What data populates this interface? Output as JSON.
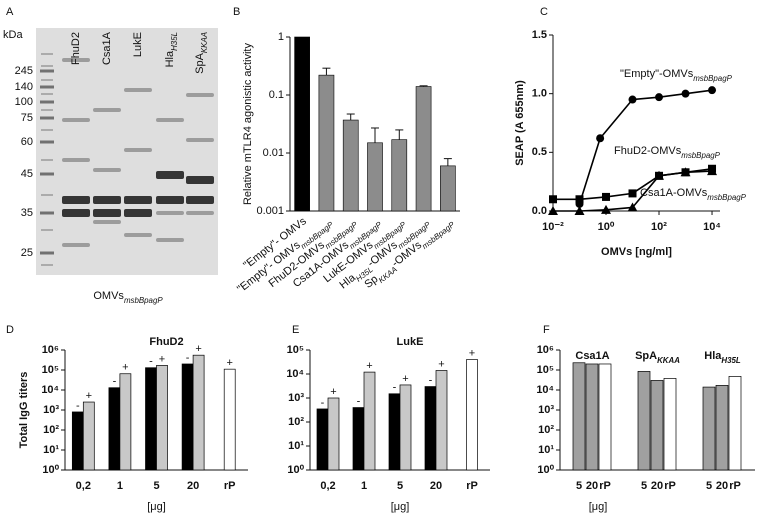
{
  "gel": {
    "letter": "A",
    "unit": "kDa",
    "markers": [
      "245",
      "140",
      "100",
      "75",
      "60",
      "45",
      "35",
      "25"
    ],
    "lanes": [
      [
        "FhuD2"
      ],
      [
        "Csa1A"
      ],
      [
        "LukE"
      ],
      [
        "Hla",
        "H35L"
      ],
      [
        "SpA",
        "KKAA"
      ]
    ],
    "caption": [
      "OMVs",
      "msbBpagP"
    ]
  },
  "chart_data": [
    {
      "type": "bar",
      "letter": "B",
      "y_label": "Relative mTLR4 agonistic activity",
      "log_y": true,
      "categories": [
        [
          "\"Empty\"- OMVs"
        ],
        [
          "\"Empty\"- OMVs",
          "msbBpagP"
        ],
        [
          "FhuD2-OMVs",
          "msbBpagP"
        ],
        [
          "Csa1A-OMVs",
          "msbBpagP"
        ],
        [
          "LukE-OMVs",
          "msbBpagP"
        ],
        [
          "Hla",
          "H35L",
          "-OMVs",
          "msbBpagP"
        ],
        [
          "Sp",
          "KKAA",
          "-OMVs",
          "msbBpagP"
        ]
      ],
      "values": [
        1,
        0.22,
        0.037,
        0.015,
        0.017,
        0.14,
        0.006
      ],
      "errors": [
        0,
        0.07,
        0.01,
        0.012,
        0.008,
        0.004,
        0.002
      ],
      "colors": [
        "#000000",
        "#8c8c8c",
        "#8c8c8c",
        "#8c8c8c",
        "#8c8c8c",
        "#8c8c8c",
        "#8c8c8c"
      ],
      "ylim": [
        0.001,
        1
      ],
      "yticks": [
        0.001,
        0.01,
        0.1,
        1
      ]
    },
    {
      "type": "scatter",
      "letter": "C",
      "x_label": "OMVs [ng/ml]",
      "y_label": "SEAP (A 655nm)",
      "log_x": true,
      "xlim": [
        0.01,
        20000
      ],
      "xticks": [
        {
          "value": 0.01,
          "label": "10⁻²"
        },
        {
          "value": 1,
          "label": "10⁰"
        },
        {
          "value": 100,
          "label": "10²"
        },
        {
          "value": 10000,
          "label": "10⁴"
        }
      ],
      "ylim": [
        0,
        1.5
      ],
      "yticks": [
        {
          "value": 0,
          "label": "0.0"
        },
        0.5,
        {
          "value": 1,
          "label": "1.0"
        },
        1.5
      ],
      "series": [
        {
          "name": [
            "\"Empty\"-OMVs",
            "msbBpagP"
          ],
          "marker": "circle",
          "color": "#000000",
          "x": [
            0.1,
            0.6,
            10,
            100,
            1000,
            10000
          ],
          "values": [
            0.06,
            0.62,
            0.95,
            0.97,
            1.0,
            1.03
          ]
        },
        {
          "name": [
            "FhuD2-OMVs",
            "msbBpagP"
          ],
          "marker": "square",
          "color": "#000000",
          "x": [
            0.01,
            0.1,
            1,
            10,
            100,
            1000,
            10000
          ],
          "values": [
            0.1,
            0.1,
            0.12,
            0.15,
            0.3,
            0.33,
            0.36
          ]
        },
        {
          "name": [
            "Csa1A-OMVs",
            "msbBpagP"
          ],
          "marker": "triangle",
          "color": "#000000",
          "x": [
            0.01,
            0.1,
            1,
            10,
            100,
            1000,
            10000
          ],
          "values": [
            0.0,
            0.0,
            0.01,
            0.03,
            0.3,
            0.33,
            0.34
          ]
        }
      ]
    },
    {
      "type": "grouped_bar",
      "letter": "D",
      "title": "FhuD2",
      "y_label": "Total IgG titers",
      "x_label": "[μg]",
      "log_y": true,
      "categories": [
        "0,2",
        "1",
        "5",
        "20",
        "rP"
      ],
      "ylim": [
        1,
        1000000
      ],
      "yticks": [
        {
          "value": 1,
          "label": "10⁰"
        },
        {
          "value": 10,
          "label": "10¹"
        },
        {
          "value": 100,
          "label": "10²"
        },
        {
          "value": 1000,
          "label": "10³"
        },
        {
          "value": 10000,
          "label": "10⁴"
        },
        {
          "value": 100000,
          "label": "10⁵"
        },
        {
          "value": 1000000,
          "label": "10⁶"
        }
      ],
      "series": [
        {
          "name": "-",
          "color": "#000000",
          "values": [
            800,
            13000,
            130000,
            200000,
            null
          ]
        },
        {
          "name": "+",
          "color": "#c8c8c8",
          "colors": [
            "#c8c8c8",
            "#c8c8c8",
            "#c8c8c8",
            "#c8c8c8",
            "#ffffff"
          ],
          "values": [
            2500,
            65000,
            170000,
            550000,
            110000
          ]
        }
      ]
    },
    {
      "type": "grouped_bar",
      "letter": "E",
      "title": "LukE",
      "x_label": "[μg]",
      "log_y": true,
      "categories": [
        "0,2",
        "1",
        "5",
        "20",
        "rP"
      ],
      "ylim": [
        1,
        100000
      ],
      "yticks": [
        {
          "value": 1,
          "label": "10⁰"
        },
        {
          "value": 10,
          "label": "10¹"
        },
        {
          "value": 100,
          "label": "10²"
        },
        {
          "value": 1000,
          "label": "10³"
        },
        {
          "value": 10000,
          "label": "10⁴"
        },
        {
          "value": 100000,
          "label": "10⁵"
        }
      ],
      "series": [
        {
          "name": "-",
          "color": "#000000",
          "values": [
            350,
            400,
            1500,
            3000,
            null
          ]
        },
        {
          "name": "+",
          "color": "#c8c8c8",
          "colors": [
            "#c8c8c8",
            "#c8c8c8",
            "#c8c8c8",
            "#c8c8c8",
            "#ffffff"
          ],
          "values": [
            1000,
            12000,
            3500,
            14000,
            40000
          ]
        }
      ]
    },
    {
      "type": "panel_bar",
      "letter": "F",
      "x_label": "[μg]",
      "log_y": true,
      "ylim": [
        1,
        1000000
      ],
      "yticks": [
        {
          "value": 1,
          "label": "10⁰"
        },
        {
          "value": 10,
          "label": "10¹"
        },
        {
          "value": 100,
          "label": "10²"
        },
        {
          "value": 1000,
          "label": "10³"
        },
        {
          "value": 10000,
          "label": "10⁴"
        },
        {
          "value": 100000,
          "label": "10⁵"
        },
        {
          "value": 1000000,
          "label": "10⁶"
        }
      ],
      "colors": [
        "#a0a0a0",
        "#a0a0a0",
        "#ffffff"
      ],
      "groups": [
        {
          "title": [
            "Csa1A"
          ],
          "categories": [
            "5",
            "20",
            "rP"
          ],
          "values": [
            230000,
            200000,
            200000
          ]
        },
        {
          "title": [
            "SpA",
            "KKAA"
          ],
          "categories": [
            "5",
            "20",
            "rP"
          ],
          "values": [
            85000,
            30000,
            38000
          ]
        },
        {
          "title": [
            "Hla",
            "H35L"
          ],
          "categories": [
            "5",
            "20",
            "rP"
          ],
          "values": [
            14000,
            17000,
            48000
          ]
        }
      ]
    }
  ]
}
